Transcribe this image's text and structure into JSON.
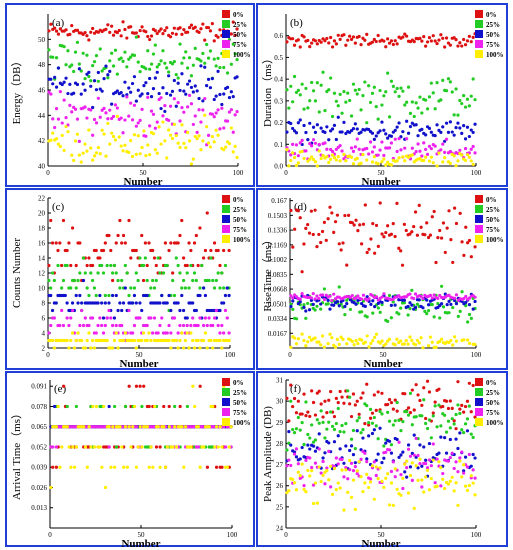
{
  "colors": {
    "frame": "#1f3fd6",
    "s0": "#dd1111",
    "s25": "#22cc22",
    "s50": "#1111cc",
    "s75": "#ee22ee",
    "s100": "#ffee00"
  },
  "chart_data": [
    {
      "type": "scatter",
      "panel_label": "(a)",
      "xlabel": "Number",
      "ylabel": "Energy（DB）",
      "xlim": [
        0,
        100
      ],
      "ylim": [
        40,
        52
      ],
      "xticks": [
        "0",
        "50",
        "100"
      ],
      "yticks": [
        "40",
        "42",
        "44",
        "46",
        "48",
        "50"
      ],
      "legend": [
        "0%",
        "25%",
        "50%",
        "75%",
        "100%"
      ],
      "series": [
        {
          "name": "0%",
          "mean": 50.6,
          "spread": 0.35,
          "step": 0,
          "color": "#dd1111"
        },
        {
          "name": "25%",
          "mean": 48.3,
          "spread": 0.7,
          "step": 0,
          "color": "#22cc22"
        },
        {
          "name": "50%",
          "mean": 46.3,
          "spread": 0.7,
          "step": 0,
          "color": "#1111cc"
        },
        {
          "name": "75%",
          "mean": 44.0,
          "spread": 0.9,
          "step": 0,
          "color": "#ee22ee"
        },
        {
          "name": "100%",
          "mean": 41.8,
          "spread": 0.9,
          "step": 0,
          "color": "#ffee00"
        }
      ]
    },
    {
      "type": "scatter",
      "panel_label": "(b)",
      "xlabel": "Number",
      "ylabel": "Duration（ms）",
      "xlim": [
        0,
        100
      ],
      "ylim": [
        0,
        0.7
      ],
      "xticks": [
        "0",
        "50",
        "100"
      ],
      "yticks": [
        "0.0",
        "0.1",
        "0.2",
        "0.3",
        "0.4",
        "0.5",
        "0.6"
      ],
      "legend": [
        "0%",
        "25%",
        "50%",
        "75%",
        "100%"
      ],
      "series": [
        {
          "name": "0%",
          "mean": 0.58,
          "spread": 0.015,
          "step": 0,
          "color": "#dd1111"
        },
        {
          "name": "25%",
          "mean": 0.32,
          "spread": 0.05,
          "step": 0,
          "color": "#22cc22"
        },
        {
          "name": "50%",
          "mean": 0.16,
          "spread": 0.025,
          "step": 0,
          "color": "#1111cc"
        },
        {
          "name": "75%",
          "mean": 0.07,
          "spread": 0.025,
          "step": 0,
          "color": "#ee22ee"
        },
        {
          "name": "100%",
          "mean": 0.025,
          "spread": 0.02,
          "step": 0,
          "color": "#ffee00"
        }
      ]
    },
    {
      "type": "scatter",
      "panel_label": "(c)",
      "xlabel": "Number",
      "ylabel": "Counts Number",
      "xlim": [
        0,
        100
      ],
      "ylim": [
        2,
        22
      ],
      "xticks": [
        "0",
        "50",
        "100"
      ],
      "yticks": [
        "2",
        "4",
        "6",
        "8",
        "10",
        "12",
        "14",
        "16",
        "18",
        "20",
        "22"
      ],
      "legend": [
        "0%",
        "25%",
        "50%",
        "75%",
        "100%"
      ],
      "series": [
        {
          "name": "0%",
          "mean": 15,
          "spread": 2.2,
          "step": 1,
          "color": "#dd1111"
        },
        {
          "name": "25%",
          "mean": 11,
          "spread": 1.5,
          "step": 1,
          "color": "#22cc22"
        },
        {
          "name": "50%",
          "mean": 8,
          "spread": 1.0,
          "step": 1,
          "color": "#1111cc"
        },
        {
          "name": "75%",
          "mean": 5,
          "spread": 0.8,
          "step": 1,
          "color": "#ee22ee"
        },
        {
          "name": "100%",
          "mean": 3,
          "spread": 0.6,
          "step": 1,
          "color": "#ffee00"
        }
      ]
    },
    {
      "type": "scatter",
      "panel_label": "(d)",
      "xlabel": "Number",
      "ylabel": "RiseTime（ms）",
      "xlim": [
        0,
        100
      ],
      "ylim": [
        0,
        0.17
      ],
      "xticks": [
        "0",
        "50",
        "100"
      ],
      "yticks": [
        "0.0167",
        "0.0334",
        "0.0501",
        "0.0668",
        "0.0835",
        "0.1002",
        "0.1169",
        "0.1336",
        "0.1503",
        "0.167"
      ],
      "legend": [
        "0%",
        "25%",
        "50%",
        "75%",
        "100%"
      ],
      "series": [
        {
          "name": "0%",
          "mean": 0.132,
          "spread": 0.018,
          "step": 0,
          "color": "#dd1111"
        },
        {
          "name": "25%",
          "mean": 0.048,
          "spread": 0.01,
          "step": 0,
          "color": "#22cc22"
        },
        {
          "name": "50%",
          "mean": 0.052,
          "spread": 0.004,
          "step": 0,
          "color": "#1111cc"
        },
        {
          "name": "75%",
          "mean": 0.058,
          "spread": 0.002,
          "step": 0,
          "color": "#ee22ee"
        },
        {
          "name": "100%",
          "mean": 0.006,
          "spread": 0.004,
          "step": 0,
          "color": "#ffee00"
        }
      ]
    },
    {
      "type": "scatter",
      "panel_label": "(e)",
      "xlabel": "Number",
      "ylabel": "Arrival Time（ms）",
      "xlim": [
        0,
        100
      ],
      "ylim": [
        0,
        0.095
      ],
      "xticks": [
        "0",
        "50",
        "100"
      ],
      "yticks": [
        "0.013",
        "0.026",
        "0.039",
        "0.052",
        "0.065",
        "0.078",
        "0.091"
      ],
      "legend": [
        "0%",
        "25%",
        "50%",
        "75%",
        "100%"
      ],
      "series": [
        {
          "name": "0%",
          "mean": 0.062,
          "spread": 0.012,
          "step": 0.013,
          "color": "#dd1111"
        },
        {
          "name": "25%",
          "mean": 0.065,
          "spread": 0.006,
          "step": 0.013,
          "color": "#22cc22"
        },
        {
          "name": "50%",
          "mean": 0.065,
          "spread": 0.003,
          "step": 0.013,
          "color": "#1111cc"
        },
        {
          "name": "75%",
          "mean": 0.062,
          "spread": 0.003,
          "step": 0.013,
          "color": "#ee22ee"
        },
        {
          "name": "100%",
          "mean": 0.055,
          "spread": 0.014,
          "step": 0.013,
          "color": "#ffee00"
        }
      ]
    },
    {
      "type": "scatter",
      "panel_label": "(f)",
      "xlabel": "Number",
      "ylabel": "Peak Amplitude (DB)",
      "xlim": [
        0,
        100
      ],
      "ylim": [
        24,
        31
      ],
      "xticks": [
        "0",
        "50",
        "100"
      ],
      "yticks": [
        "24",
        "25",
        "26",
        "27",
        "28",
        "29",
        "30",
        "31"
      ],
      "legend": [
        "0%",
        "25%",
        "50%",
        "75%",
        "100%"
      ],
      "series": [
        {
          "name": "0%",
          "mean": 29.8,
          "spread": 0.5,
          "step": 0,
          "color": "#dd1111"
        },
        {
          "name": "25%",
          "mean": 29.0,
          "spread": 0.6,
          "step": 0,
          "color": "#22cc22"
        },
        {
          "name": "50%",
          "mean": 27.6,
          "spread": 0.5,
          "step": 0,
          "color": "#1111cc"
        },
        {
          "name": "75%",
          "mean": 27.0,
          "spread": 0.5,
          "step": 0,
          "color": "#ee22ee"
        },
        {
          "name": "100%",
          "mean": 26.2,
          "spread": 0.6,
          "step": 0,
          "color": "#ffee00"
        }
      ]
    }
  ]
}
